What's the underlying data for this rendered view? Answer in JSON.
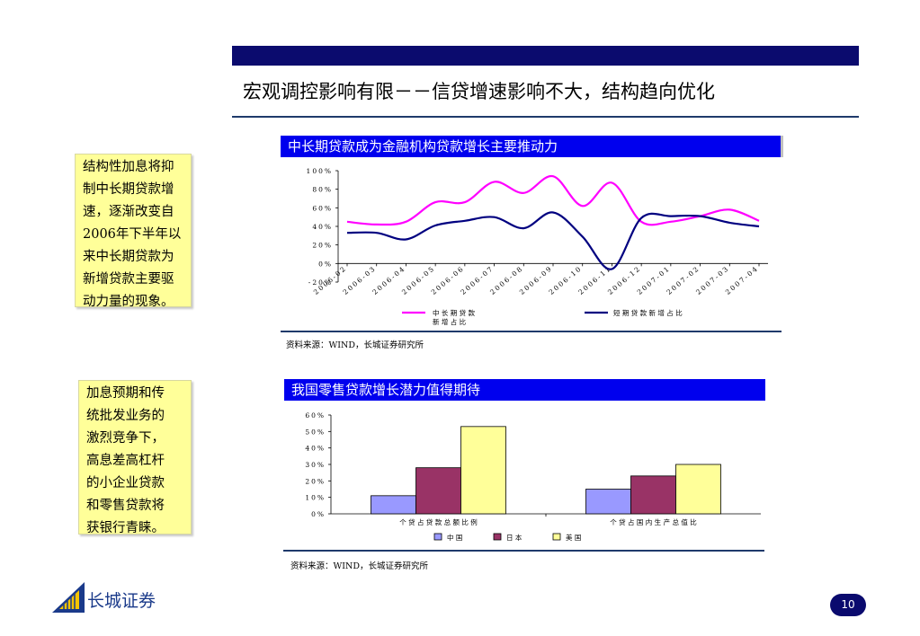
{
  "title": "宏观调控影响有限－－信贷增速影响不大，结构趋向优化",
  "notes": [
    "结构性加息将抑\n制中长期贷款增\n速，逐渐改变自\n2006年下半年以\n来中长期贷款为\n新增贷款主要驱\n动力量的现象。",
    "加息预期和传\n统批发业务的\n激烈竞争下，\n高息差高杠杆\n的小企业贷款\n和零售贷款将\n获银行青睐。"
  ],
  "sources": [
    "资料来源：WIND，长城证券研究所",
    "资料来源：WIND，长城证券研究所"
  ],
  "logo_text": "长城证券",
  "page_number": "10",
  "colors": {
    "navy": "#0b0b6e",
    "header_blue": "#0000ee",
    "magenta": "#ff00ff",
    "dark_blue": "#000080",
    "china": "#9999ff",
    "japan": "#993366",
    "usa": "#ffff99"
  },
  "chart_data": [
    {
      "type": "line",
      "title": "中长期贷款成为金融机构贷款增长主要推动力",
      "x": [
        "2006-02",
        "2006-03",
        "2006-04",
        "2006-05",
        "2006-06",
        "2006-07",
        "2006-08",
        "2006-09",
        "2006-10",
        "2006-11",
        "2006-12",
        "2007-01",
        "2007-02",
        "2007-03",
        "2007-04"
      ],
      "x_tick_labels": [
        "2006-02",
        "2006-03",
        "2006-04",
        "2006-05",
        "2006-06",
        "2006-07",
        "2006-08",
        "2006-09",
        "2006-10",
        "2006-11",
        "2006-12",
        "2007-01",
        "2007-02",
        "2007-03",
        "2007-04"
      ],
      "y_tick_labels": [
        "-20%",
        "0%",
        "20%",
        "40%",
        "60%",
        "80%",
        "100%"
      ],
      "ylim": [
        -20,
        100
      ],
      "series": [
        {
          "name": "中长期贷款新增占比",
          "legend_lines": [
            "中 长 期 贷 款",
            "新 增 占 比"
          ],
          "color": "#ff00ff",
          "values": [
            45,
            42,
            45,
            66,
            66,
            88,
            76,
            94,
            62,
            87,
            45,
            45,
            51,
            58,
            46
          ]
        },
        {
          "name": "短期贷款新增占比",
          "legend_lines": [
            "短 期 贷 款 新 增 占 比"
          ],
          "color": "#000080",
          "values": [
            33,
            33,
            26,
            41,
            46,
            50,
            38,
            55,
            29,
            -6,
            49,
            51,
            51,
            44,
            40
          ]
        }
      ],
      "grid": false,
      "legend_position": "bottom"
    },
    {
      "type": "bar",
      "title": "我国零售贷款增长潜力值得期待",
      "categories": [
        "个 贷 占 贷 款 总 额 比 例",
        "个 贷 占 国 内 生 产 总 值 比"
      ],
      "y_tick_labels": [
        "0%",
        "10%",
        "20%",
        "30%",
        "40%",
        "50%",
        "60%"
      ],
      "ylim": [
        0,
        60
      ],
      "series": [
        {
          "name": "中 国",
          "color": "#9999ff",
          "values": [
            11,
            15
          ]
        },
        {
          "name": "日 本",
          "color": "#993366",
          "values": [
            28,
            23
          ]
        },
        {
          "name": "美 国",
          "color": "#ffff99",
          "values": [
            53,
            30
          ]
        }
      ],
      "grid": false,
      "legend_position": "bottom"
    }
  ]
}
